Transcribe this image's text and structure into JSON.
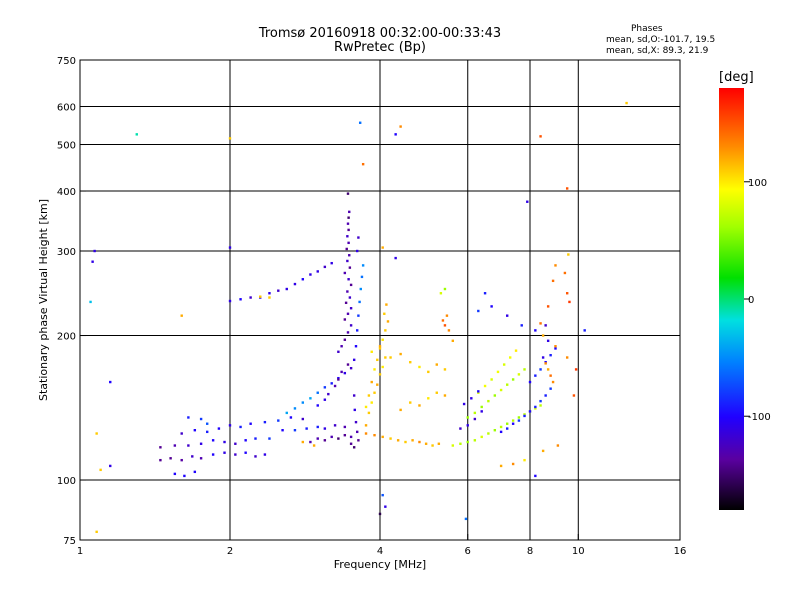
{
  "header": {
    "title": "Tromsø 20160918 00:32:00-00:33:43",
    "subtitle": "RwPretec (Bp)"
  },
  "phases": {
    "heading": "Phases",
    "line_o": "mean, sd,O:-101.7, 19.5",
    "line_x": "mean, sd,X: 89.3, 21.9"
  },
  "colorbar": {
    "title": "[deg]",
    "range": [
      -180,
      180
    ],
    "ticks": [
      {
        "value": 100,
        "label": "100"
      },
      {
        "value": 0,
        "label": "0"
      },
      {
        "value": -100,
        "label": "-100"
      }
    ]
  },
  "chart_data": {
    "type": "scatter",
    "xlabel": "Frequency [MHz]",
    "ylabel": "Stationary phase Virtual Height [km]",
    "xscale": "log",
    "yscale": "log",
    "xlim": [
      1,
      16
    ],
    "ylim": [
      75,
      750
    ],
    "grid": true,
    "x_ticks": [
      {
        "value": 1,
        "label": "1"
      },
      {
        "value": 2,
        "label": "2"
      },
      {
        "value": 4,
        "label": "4"
      },
      {
        "value": 6,
        "label": "6"
      },
      {
        "value": 8,
        "label": "8"
      },
      {
        "value": 10,
        "label": "10"
      },
      {
        "value": 16,
        "label": "16"
      }
    ],
    "y_ticks": [
      {
        "value": 75,
        "label": "75"
      },
      {
        "value": 100,
        "label": "100"
      },
      {
        "value": 200,
        "label": "200"
      },
      {
        "value": 300,
        "label": "300"
      },
      {
        "value": 400,
        "label": "400"
      },
      {
        "value": 500,
        "label": "500"
      },
      {
        "value": 600,
        "label": "600"
      },
      {
        "value": 750,
        "label": "750"
      }
    ],
    "x_grid": [
      2,
      4,
      6,
      8,
      10
    ],
    "y_grid": [
      100,
      200,
      300,
      400,
      500,
      600
    ],
    "color_value": "phase [deg]",
    "points": [
      [
        1.05,
        235,
        -30
      ],
      [
        1.07,
        300,
        -110
      ],
      [
        1.06,
        285,
        -110
      ],
      [
        1.3,
        525,
        -10
      ],
      [
        1.15,
        160,
        -100
      ],
      [
        1.1,
        105,
        110
      ],
      [
        1.08,
        125,
        110
      ],
      [
        1.6,
        220,
        120
      ],
      [
        2.0,
        515,
        110
      ],
      [
        2.0,
        305,
        -110
      ],
      [
        1.15,
        107,
        -110
      ],
      [
        1.55,
        103,
        -100
      ],
      [
        1.62,
        102,
        -100
      ],
      [
        1.7,
        104,
        -100
      ],
      [
        1.08,
        78,
        110
      ],
      [
        1.45,
        110,
        -140
      ],
      [
        1.52,
        111,
        -140
      ],
      [
        1.6,
        110,
        -135
      ],
      [
        1.68,
        112,
        -120
      ],
      [
        1.75,
        111,
        -130
      ],
      [
        1.85,
        113,
        -100
      ],
      [
        1.95,
        114,
        -110
      ],
      [
        2.05,
        113,
        -120
      ],
      [
        2.15,
        114,
        -100
      ],
      [
        2.25,
        112,
        -120
      ],
      [
        2.35,
        113,
        -110
      ],
      [
        1.45,
        117,
        -140
      ],
      [
        1.55,
        118,
        -130
      ],
      [
        1.65,
        118,
        -120
      ],
      [
        1.75,
        119,
        -110
      ],
      [
        1.85,
        121,
        -100
      ],
      [
        1.95,
        120,
        -110
      ],
      [
        2.05,
        119,
        -120
      ],
      [
        2.15,
        121,
        -100
      ],
      [
        2.25,
        122,
        -90
      ],
      [
        2.4,
        122,
        -80
      ],
      [
        1.6,
        125,
        -120
      ],
      [
        1.7,
        127,
        -100
      ],
      [
        1.8,
        126,
        -90
      ],
      [
        1.9,
        128,
        -100
      ],
      [
        2.0,
        130,
        -110
      ],
      [
        2.1,
        129,
        -90
      ],
      [
        2.2,
        131,
        -100
      ],
      [
        2.35,
        132,
        -90
      ],
      [
        2.5,
        133,
        -80
      ],
      [
        2.65,
        135,
        -100
      ],
      [
        2.8,
        134,
        -120
      ],
      [
        2.55,
        127,
        -100
      ],
      [
        2.7,
        127,
        -80
      ],
      [
        2.85,
        128,
        -90
      ],
      [
        3.0,
        129,
        -90
      ],
      [
        3.1,
        128,
        -110
      ],
      [
        3.25,
        130,
        -120
      ],
      [
        3.4,
        129,
        -130
      ],
      [
        2.9,
        120,
        -130
      ],
      [
        3.0,
        122,
        -130
      ],
      [
        3.1,
        121,
        -140
      ],
      [
        3.2,
        123,
        -130
      ],
      [
        3.3,
        122,
        -150
      ],
      [
        3.4,
        124,
        -140
      ],
      [
        3.5,
        123,
        -130
      ],
      [
        2.6,
        138,
        -40
      ],
      [
        2.7,
        141,
        -50
      ],
      [
        2.8,
        145,
        -50
      ],
      [
        2.9,
        148,
        -40
      ],
      [
        3.0,
        152,
        -60
      ],
      [
        3.1,
        156,
        -80
      ],
      [
        3.2,
        159,
        -90
      ],
      [
        3.3,
        163,
        -100
      ],
      [
        3.4,
        167,
        -110
      ],
      [
        3.5,
        171,
        -120
      ],
      [
        3.0,
        143,
        -100
      ],
      [
        3.1,
        147,
        -110
      ],
      [
        3.15,
        151,
        -120
      ],
      [
        3.25,
        157,
        -130
      ],
      [
        3.3,
        162,
        -140
      ],
      [
        3.35,
        168,
        -130
      ],
      [
        3.45,
        174,
        -140
      ],
      [
        3.3,
        185,
        -120
      ],
      [
        3.35,
        190,
        -130
      ],
      [
        3.4,
        196,
        -140
      ],
      [
        3.45,
        203,
        -130
      ],
      [
        3.5,
        210,
        -120
      ],
      [
        3.4,
        216,
        -140
      ],
      [
        3.45,
        222,
        -130
      ],
      [
        3.5,
        228,
        -120
      ],
      [
        3.42,
        234,
        -140
      ],
      [
        3.48,
        240,
        -120
      ],
      [
        3.44,
        247,
        -130
      ],
      [
        3.5,
        255,
        -140
      ],
      [
        3.46,
        262,
        -120
      ],
      [
        3.4,
        270,
        -130
      ],
      [
        3.48,
        277,
        -140
      ],
      [
        3.44,
        286,
        -120
      ],
      [
        3.47,
        294,
        -130
      ],
      [
        3.43,
        303,
        -140
      ],
      [
        3.46,
        312,
        -130
      ],
      [
        3.44,
        322,
        -120
      ],
      [
        3.46,
        332,
        -140
      ],
      [
        3.45,
        342,
        -130
      ],
      [
        3.46,
        352,
        -150
      ],
      [
        3.47,
        362,
        -130
      ],
      [
        3.45,
        395,
        -150
      ],
      [
        3.55,
        178,
        -110
      ],
      [
        3.58,
        190,
        -100
      ],
      [
        3.6,
        205,
        -90
      ],
      [
        3.62,
        220,
        -80
      ],
      [
        3.64,
        235,
        -60
      ],
      [
        3.66,
        250,
        -50
      ],
      [
        3.68,
        265,
        -60
      ],
      [
        3.7,
        280,
        -50
      ],
      [
        3.6,
        300,
        -110
      ],
      [
        3.62,
        320,
        -120
      ],
      [
        3.55,
        150,
        -120
      ],
      [
        3.56,
        140,
        -110
      ],
      [
        3.58,
        132,
        -120
      ],
      [
        3.6,
        126,
        -130
      ],
      [
        3.62,
        121,
        -140
      ],
      [
        3.5,
        119,
        -140
      ],
      [
        3.55,
        117,
        -150
      ],
      [
        2.3,
        240,
        -110
      ],
      [
        2.4,
        245,
        -110
      ],
      [
        2.5,
        248,
        -120
      ],
      [
        2.6,
        250,
        -110
      ],
      [
        2.7,
        256,
        -110
      ],
      [
        2.8,
        262,
        -100
      ],
      [
        2.9,
        268,
        -110
      ],
      [
        3.0,
        272,
        -110
      ],
      [
        3.1,
        278,
        -120
      ],
      [
        3.2,
        283,
        -110
      ],
      [
        2.0,
        236,
        -110
      ],
      [
        2.1,
        238,
        -100
      ],
      [
        2.2,
        240,
        -120
      ],
      [
        2.4,
        240,
        110
      ],
      [
        2.3,
        241,
        110
      ],
      [
        1.65,
        135,
        -90
      ],
      [
        1.75,
        134,
        -80
      ],
      [
        1.8,
        131,
        -70
      ],
      [
        2.8,
        120,
        120
      ],
      [
        2.95,
        118,
        120
      ],
      [
        3.75,
        130,
        120
      ],
      [
        3.8,
        138,
        110
      ],
      [
        3.85,
        145,
        100
      ],
      [
        3.9,
        152,
        110
      ],
      [
        3.95,
        158,
        120
      ],
      [
        4.0,
        166,
        110
      ],
      [
        4.05,
        172,
        100
      ],
      [
        4.1,
        180,
        110
      ],
      [
        4.0,
        188,
        110
      ],
      [
        4.05,
        196,
        100
      ],
      [
        4.1,
        205,
        110
      ],
      [
        4.15,
        214,
        120
      ],
      [
        4.08,
        222,
        110
      ],
      [
        4.12,
        232,
        120
      ],
      [
        3.75,
        142,
        100
      ],
      [
        3.8,
        150,
        110
      ],
      [
        3.85,
        160,
        120
      ],
      [
        3.9,
        170,
        100
      ],
      [
        3.95,
        178,
        110
      ],
      [
        4.0,
        190,
        120
      ],
      [
        3.85,
        185,
        100
      ],
      [
        3.75,
        125,
        130
      ],
      [
        3.9,
        124,
        130
      ],
      [
        4.05,
        123,
        120
      ],
      [
        4.2,
        122,
        110
      ],
      [
        4.35,
        121,
        120
      ],
      [
        4.5,
        120,
        110
      ],
      [
        4.65,
        121,
        120
      ],
      [
        4.8,
        120,
        130
      ],
      [
        4.95,
        119,
        120
      ],
      [
        5.1,
        118,
        110
      ],
      [
        5.25,
        119,
        120
      ],
      [
        4.2,
        180,
        110
      ],
      [
        4.4,
        183,
        120
      ],
      [
        4.6,
        176,
        110
      ],
      [
        4.8,
        172,
        100
      ],
      [
        5.0,
        168,
        110
      ],
      [
        5.2,
        174,
        120
      ],
      [
        5.4,
        170,
        110
      ],
      [
        4.4,
        140,
        120
      ],
      [
        4.6,
        145,
        110
      ],
      [
        4.8,
        143,
        120
      ],
      [
        5.0,
        148,
        100
      ],
      [
        5.2,
        152,
        110
      ],
      [
        5.4,
        150,
        120
      ],
      [
        5.35,
        215,
        140
      ],
      [
        5.4,
        210,
        150
      ],
      [
        5.45,
        220,
        130
      ],
      [
        5.3,
        245,
        80
      ],
      [
        5.4,
        250,
        60
      ],
      [
        5.5,
        205,
        130
      ],
      [
        5.6,
        195,
        120
      ],
      [
        4.4,
        545,
        130
      ],
      [
        4.3,
        525,
        -100
      ],
      [
        3.65,
        555,
        -60
      ],
      [
        3.7,
        455,
        140
      ],
      [
        4.3,
        290,
        -110
      ],
      [
        4.05,
        305,
        120
      ],
      [
        4.1,
        88,
        -110
      ],
      [
        4.05,
        93,
        -70
      ],
      [
        4.0,
        85,
        -160
      ],
      [
        5.6,
        118,
        80
      ],
      [
        5.8,
        119,
        70
      ],
      [
        6.0,
        120,
        60
      ],
      [
        6.2,
        121,
        70
      ],
      [
        6.4,
        123,
        80
      ],
      [
        6.6,
        125,
        70
      ],
      [
        6.8,
        127,
        60
      ],
      [
        7.0,
        129,
        70
      ],
      [
        7.2,
        131,
        60
      ],
      [
        7.4,
        133,
        70
      ],
      [
        7.6,
        135,
        60
      ],
      [
        7.8,
        137,
        70
      ],
      [
        8.0,
        139,
        60
      ],
      [
        8.2,
        141,
        80
      ],
      [
        8.4,
        143,
        70
      ],
      [
        6.0,
        135,
        60
      ],
      [
        6.2,
        138,
        70
      ],
      [
        6.4,
        142,
        60
      ],
      [
        6.6,
        146,
        70
      ],
      [
        6.8,
        150,
        60
      ],
      [
        7.0,
        154,
        80
      ],
      [
        7.2,
        158,
        70
      ],
      [
        7.4,
        162,
        60
      ],
      [
        7.6,
        166,
        80
      ],
      [
        7.8,
        170,
        70
      ],
      [
        6.3,
        152,
        80
      ],
      [
        6.5,
        157,
        90
      ],
      [
        6.7,
        162,
        80
      ],
      [
        6.9,
        168,
        90
      ],
      [
        7.1,
        174,
        80
      ],
      [
        7.3,
        180,
        90
      ],
      [
        7.5,
        186,
        100
      ],
      [
        5.8,
        128,
        -120
      ],
      [
        6.0,
        130,
        -110
      ],
      [
        6.2,
        134,
        -120
      ],
      [
        6.4,
        139,
        -110
      ],
      [
        6.1,
        148,
        -110
      ],
      [
        6.3,
        153,
        -100
      ],
      [
        5.9,
        144,
        -110
      ],
      [
        7.0,
        126,
        -100
      ],
      [
        7.2,
        128,
        -90
      ],
      [
        7.4,
        131,
        -100
      ],
      [
        7.6,
        133,
        -80
      ],
      [
        7.8,
        136,
        -90
      ],
      [
        8.0,
        139,
        -100
      ],
      [
        8.2,
        142,
        -90
      ],
      [
        8.4,
        146,
        -80
      ],
      [
        8.6,
        150,
        -90
      ],
      [
        8.8,
        155,
        -80
      ],
      [
        8.0,
        160,
        -100
      ],
      [
        8.2,
        165,
        -90
      ],
      [
        8.4,
        170,
        -80
      ],
      [
        8.6,
        176,
        -100
      ],
      [
        8.8,
        182,
        -90
      ],
      [
        9.0,
        188,
        -100
      ],
      [
        8.7,
        195,
        -110
      ],
      [
        8.5,
        180,
        -110
      ],
      [
        8.6,
        175,
        130
      ],
      [
        8.7,
        170,
        120
      ],
      [
        8.8,
        165,
        140
      ],
      [
        8.9,
        160,
        130
      ],
      [
        9.0,
        190,
        130
      ],
      [
        8.5,
        200,
        120
      ],
      [
        8.4,
        212,
        140
      ],
      [
        8.7,
        230,
        150
      ],
      [
        8.9,
        260,
        140
      ],
      [
        9.0,
        280,
        130
      ],
      [
        9.4,
        270,
        140
      ],
      [
        9.5,
        245,
        150
      ],
      [
        9.6,
        235,
        160
      ],
      [
        9.55,
        295,
        110
      ],
      [
        9.5,
        180,
        130
      ],
      [
        9.8,
        150,
        150
      ],
      [
        9.9,
        170,
        160
      ],
      [
        10.3,
        205,
        -90
      ],
      [
        8.4,
        520,
        150
      ],
      [
        9.5,
        405,
        150
      ],
      [
        7.9,
        380,
        -110
      ],
      [
        12.5,
        610,
        110
      ],
      [
        6.5,
        245,
        -90
      ],
      [
        6.3,
        225,
        -80
      ],
      [
        6.7,
        230,
        -100
      ],
      [
        7.2,
        220,
        -110
      ],
      [
        7.7,
        210,
        -90
      ],
      [
        8.2,
        205,
        -100
      ],
      [
        8.6,
        210,
        -120
      ],
      [
        5.95,
        83,
        -60
      ],
      [
        8.2,
        102,
        -100
      ],
      [
        7.0,
        107,
        120
      ],
      [
        7.4,
        108,
        130
      ],
      [
        7.8,
        110,
        100
      ],
      [
        8.5,
        115,
        120
      ],
      [
        9.1,
        118,
        130
      ]
    ]
  }
}
